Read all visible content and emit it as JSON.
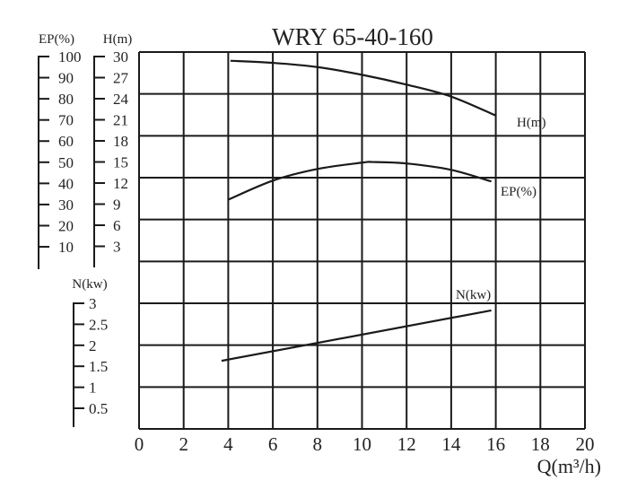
{
  "chart_data": {
    "type": "line",
    "title": "WRY 65-40-160",
    "xlabel": "Q(m³/h)",
    "xlim": [
      0,
      20
    ],
    "xticks": [
      0,
      2,
      4,
      6,
      8,
      10,
      12,
      14,
      16,
      18,
      20
    ],
    "grid": true,
    "axes": {
      "ep": {
        "label": "EP(%)",
        "ticks": [
          "100",
          "90",
          "80",
          "70",
          "60",
          "50",
          "40",
          "30",
          "20",
          "10"
        ],
        "range": [
          0,
          100
        ]
      },
      "h": {
        "label": "H(m)",
        "ticks": [
          "30",
          "27",
          "24",
          "21",
          "18",
          "15",
          "12",
          "9",
          "6",
          "3"
        ],
        "range": [
          0,
          30
        ]
      },
      "n": {
        "label": "N(kw)",
        "ticks": [
          "3",
          "2.5",
          "2",
          "1.5",
          "1",
          "0.5"
        ],
        "range": [
          0,
          3
        ]
      }
    },
    "series": [
      {
        "name": "H(m)",
        "axis": "h",
        "x": [
          4.1,
          6,
          8,
          10,
          12,
          14,
          16
        ],
        "y": [
          29.4,
          29.1,
          28.5,
          27.4,
          26.0,
          24.3,
          21.6
        ]
      },
      {
        "name": "EP(%)",
        "axis": "ep",
        "x": [
          4,
          6,
          8,
          10,
          10.5,
          12,
          14,
          15.8
        ],
        "y": [
          32.3,
          41.3,
          46.8,
          49.8,
          50.1,
          49.4,
          46.4,
          40.9
        ]
      },
      {
        "name": "N(kw)",
        "axis": "n",
        "x": [
          3.7,
          15.8
        ],
        "y": [
          1.63,
          2.83
        ]
      }
    ],
    "color": "#1a1a1a"
  }
}
